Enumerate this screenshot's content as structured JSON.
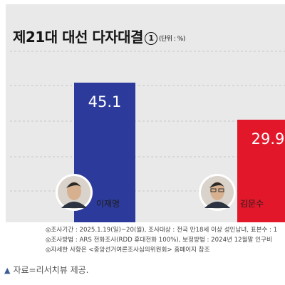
{
  "chart_data": {
    "type": "bar",
    "title": "제21대 대선 다자대결",
    "title_marker": "1",
    "unit_label": "(단위 : %)",
    "categories": [
      "이재명",
      "김문수"
    ],
    "values": [
      45.1,
      29.9
    ],
    "colors": [
      "#2c3a9b",
      "#e2172a"
    ],
    "ylim": [
      0,
      50
    ],
    "grid": "dashed horizontal",
    "xlabel": "",
    "ylabel": ""
  },
  "notes": [
    "◎조사기간 : 2025.1.19(일)~20(월), 조사대상 : 전국 만18세 이상 성인남녀, 표본수 : 1",
    "◎조사방법 : ARS 전화조사(RDD 휴대전화 100%), 보정방법 : 2024년 12월말 인구비",
    "◎자세한 사항은 <중앙선거여론조사심의위원회> 홈페이지 참조"
  ],
  "source": "자료=리서치뷰 제공.",
  "avatar_icons": [
    "person-portrait-icon",
    "person-portrait-icon"
  ]
}
